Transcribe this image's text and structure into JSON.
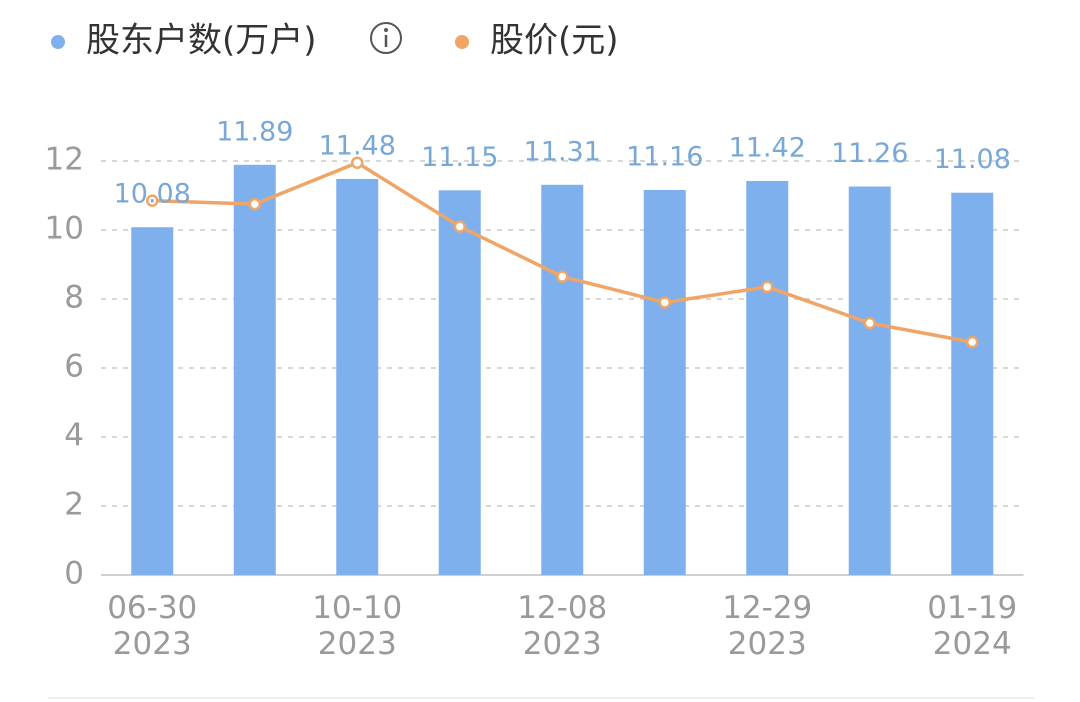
{
  "chart_data": {
    "type": "bar",
    "categories": [
      "06-30\n2023",
      null,
      "10-10\n2023",
      null,
      "12-08\n2023",
      null,
      "12-29\n2023",
      null,
      "01-19\n2024"
    ],
    "series": [
      {
        "name": "股东户数(万户)",
        "type": "bar",
        "color": "#7eb0ee",
        "values": [
          10.08,
          11.89,
          11.48,
          11.15,
          11.31,
          11.16,
          11.42,
          11.26,
          11.08
        ]
      },
      {
        "name": "股价(元)",
        "type": "line",
        "color": "#f0a566",
        "values": [
          10.85,
          10.75,
          11.95,
          10.1,
          8.65,
          7.9,
          8.35,
          7.3,
          6.75
        ]
      }
    ],
    "ylim": [
      0,
      12
    ],
    "yticks": [
      0,
      2,
      4,
      6,
      8,
      10,
      12
    ],
    "grid": true
  }
}
